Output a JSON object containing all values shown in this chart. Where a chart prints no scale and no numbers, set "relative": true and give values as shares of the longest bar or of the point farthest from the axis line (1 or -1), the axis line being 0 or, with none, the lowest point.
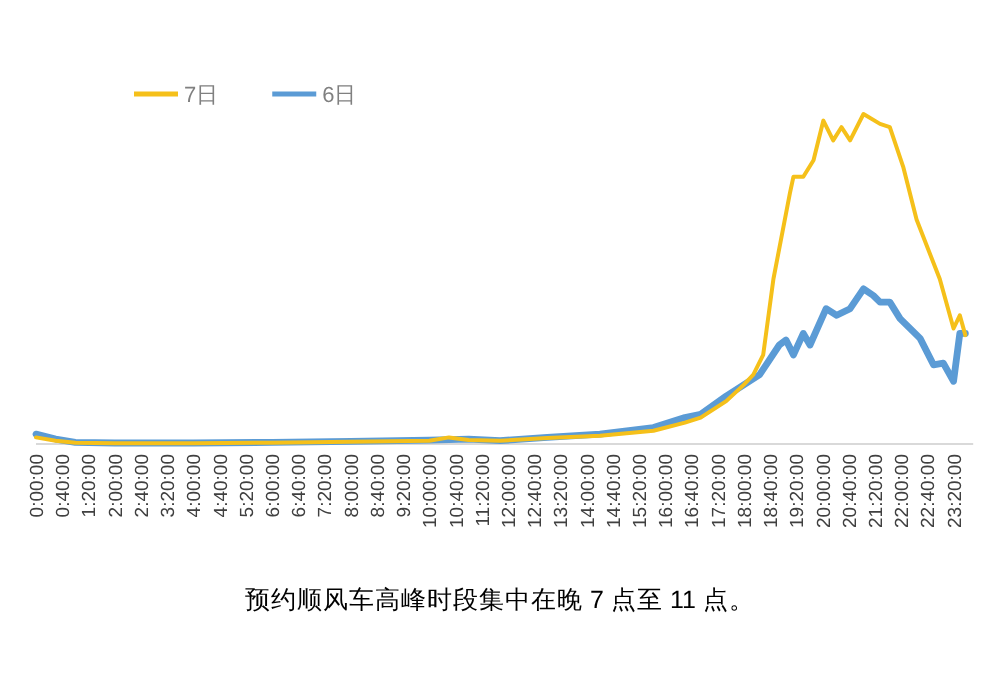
{
  "chart_data": {
    "type": "line",
    "relative": true,
    "legend": "top left",
    "grid": false,
    "tick_labels": "x",
    "xlim": [
      0,
      23.83
    ],
    "xticks": [
      {
        "value": 0,
        "label": "0:00:00"
      },
      {
        "value": 0.6667,
        "label": "0:40:00"
      },
      {
        "value": 1.3333,
        "label": "1:20:00"
      },
      {
        "value": 2,
        "label": "2:00:00"
      },
      {
        "value": 2.6667,
        "label": "2:40:00"
      },
      {
        "value": 3.3333,
        "label": "3:20:00"
      },
      {
        "value": 4,
        "label": "4:00:00"
      },
      {
        "value": 4.6667,
        "label": "4:40:00"
      },
      {
        "value": 5.3333,
        "label": "5:20:00"
      },
      {
        "value": 6,
        "label": "6:00:00"
      },
      {
        "value": 6.6667,
        "label": "6:40:00"
      },
      {
        "value": 7.3333,
        "label": "7:20:00"
      },
      {
        "value": 8,
        "label": "8:00:00"
      },
      {
        "value": 8.6667,
        "label": "8:40:00"
      },
      {
        "value": 9.3333,
        "label": "9:20:00"
      },
      {
        "value": 10,
        "label": "10:00:00"
      },
      {
        "value": 10.6667,
        "label": "10:40:00"
      },
      {
        "value": 11.3333,
        "label": "11:20:00"
      },
      {
        "value": 12,
        "label": "12:00:00"
      },
      {
        "value": 12.6667,
        "label": "12:40:00"
      },
      {
        "value": 13.3333,
        "label": "13:20:00"
      },
      {
        "value": 14,
        "label": "14:00:00"
      },
      {
        "value": 14.6667,
        "label": "14:40:00"
      },
      {
        "value": 15.3333,
        "label": "15:20:00"
      },
      {
        "value": 16,
        "label": "16:00:00"
      },
      {
        "value": 16.6667,
        "label": "16:40:00"
      },
      {
        "value": 17.3333,
        "label": "17:20:00"
      },
      {
        "value": 18,
        "label": "18:00:00"
      },
      {
        "value": 18.6667,
        "label": "18:40:00"
      },
      {
        "value": 19.3333,
        "label": "19:20:00"
      },
      {
        "value": 20,
        "label": "20:00:00"
      },
      {
        "value": 20.6667,
        "label": "20:40:00"
      },
      {
        "value": 21.3333,
        "label": "21:20:00"
      },
      {
        "value": 22,
        "label": "22:00:00"
      },
      {
        "value": 22.6667,
        "label": "22:40:00"
      },
      {
        "value": 23.3333,
        "label": "23:20:00"
      }
    ],
    "series": [
      {
        "name": "7日",
        "color": "#f5c01a",
        "x": [
          0,
          0.5,
          1,
          2,
          4,
          6,
          8,
          10,
          10.5,
          11,
          11.8,
          13,
          14.34,
          15.7,
          16.5,
          16.9,
          17.55,
          18,
          18.24,
          18.49,
          18.75,
          19.17,
          19.26,
          19.51,
          19.77,
          20.02,
          20.27,
          20.48,
          20.7,
          21.04,
          21.46,
          21.71,
          22.05,
          22.39,
          22.98,
          23.33,
          23.49,
          23.63
        ],
        "values": [
          0.02,
          0.01,
          0.004,
          0.002,
          0.002,
          0.004,
          0.007,
          0.01,
          0.02,
          0.012,
          0.01,
          0.018,
          0.025,
          0.04,
          0.065,
          0.08,
          0.13,
          0.18,
          0.21,
          0.27,
          0.5,
          0.76,
          0.81,
          0.81,
          0.86,
          0.98,
          0.92,
          0.96,
          0.92,
          1.0,
          0.97,
          0.96,
          0.84,
          0.68,
          0.5,
          0.35,
          0.39,
          0.33
        ]
      },
      {
        "name": "6日",
        "color": "#5b9bd5",
        "x": [
          0,
          0.5,
          1,
          2,
          4,
          6,
          8,
          10,
          11,
          11.8,
          13,
          14.34,
          15.7,
          16.5,
          16.9,
          17.55,
          18.4,
          18.9,
          19.07,
          19.26,
          19.51,
          19.68,
          20.09,
          20.36,
          20.7,
          21.04,
          21.29,
          21.46,
          21.71,
          21.97,
          22.48,
          22.82,
          23.07,
          23.33,
          23.49,
          23.63
        ],
        "values": [
          0.03,
          0.015,
          0.005,
          0.003,
          0.003,
          0.005,
          0.008,
          0.012,
          0.015,
          0.01,
          0.02,
          0.03,
          0.05,
          0.08,
          0.09,
          0.145,
          0.21,
          0.3,
          0.315,
          0.27,
          0.335,
          0.3,
          0.41,
          0.39,
          0.41,
          0.47,
          0.45,
          0.43,
          0.43,
          0.38,
          0.32,
          0.24,
          0.245,
          0.19,
          0.335,
          0.335
        ]
      }
    ],
    "annotations": [
      "预约顺风车高峰时段集中在晚 7 点至 11 点。"
    ]
  }
}
